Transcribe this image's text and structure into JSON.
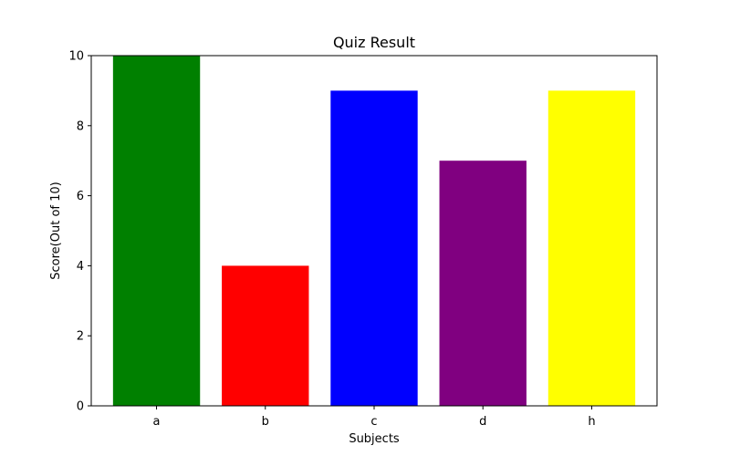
{
  "chart_data": {
    "type": "bar",
    "title": "Quiz Result",
    "xlabel": "Subjects",
    "ylabel": "Score(Out of 10)",
    "categories": [
      "a",
      "b",
      "c",
      "d",
      "h"
    ],
    "values": [
      10,
      4,
      9,
      7,
      9
    ],
    "colors": [
      "#008000",
      "#ff0000",
      "#0000ff",
      "#800080",
      "#ffff00"
    ],
    "ylim": [
      0,
      10
    ],
    "yticks": [
      "0",
      "2",
      "4",
      "6",
      "8",
      "10"
    ],
    "grid": false,
    "legend": "none"
  }
}
